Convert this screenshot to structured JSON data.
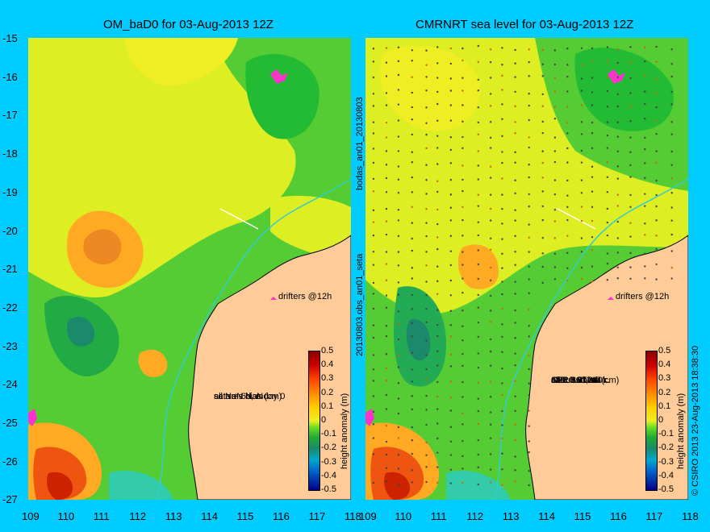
{
  "left_title": "OM_baD0 for 03-Aug-2013 12Z",
  "right_title": "CMRNRT sea level  for 03-Aug-2013 12Z",
  "y_ticks": [
    "-15",
    "-16",
    "-17",
    "-18",
    "-19",
    "-20",
    "-21",
    "-22",
    "-23",
    "-24",
    "-25",
    "-26",
    "-27"
  ],
  "x_ticks": [
    "109",
    "110",
    "111",
    "112",
    "113",
    "114",
    "115",
    "116",
    "117",
    "118"
  ],
  "drifters_label": "drifters @12h",
  "left_stats": [
    "seta +-6d, mday 0",
    "sat rms bias (cm)",
    "all NaN NaN"
  ],
  "right_stats": [
    "obs +-6d, oi0",
    "sat rms bias (cm)",
    "J2R   3.8 0.14 r.",
    "C2R   3 -1 m.",
    "SRL   3.8 -0.3 k.",
    "all   3.7 -0.24"
  ],
  "colorbar_ticks": [
    "0.5",
    "0.4",
    "0.3",
    "0.2",
    "0.1",
    "0",
    "-0.1",
    "-0.2",
    "-0.3",
    "-0.4",
    "-0.5"
  ],
  "colorbar_label": "height anomaly (m)",
  "middle_vertical_top": "bodas_an01_20130803",
  "middle_vertical_bottom": "20130803.obs_an01_seta",
  "copyright": "© CSIRO 2013   23-Aug-2013 18:38:30",
  "colors": {
    "background": "#00ccff",
    "land": "#ffcc99",
    "coast": "#000000",
    "contour_green": "#33cc33",
    "contour_yellow": "#ddee22",
    "contour_orange": "#ffaa22",
    "track": "#33cccc",
    "drifter": "#ff33cc"
  }
}
